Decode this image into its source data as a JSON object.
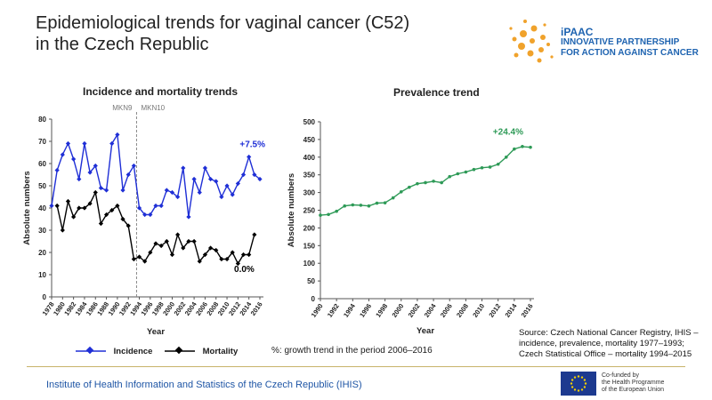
{
  "slide": {
    "title_line1": "Epidemiological trends for vaginal cancer (C52)",
    "title_line2": "in the Czech Republic",
    "logo": {
      "name": "iPAAC",
      "line1": "INNOVATIVE PARTNERSHIP",
      "line2": "FOR ACTION AGAINST CANCER"
    },
    "legend": {
      "incidence_label": "Incidence",
      "mortality_label": "Mortality",
      "note": "%: growth trend in the period 2006–2016"
    },
    "source": {
      "line1": "Source: Czech National Cancer Registry, IHIS –",
      "line2": "incidence, prevalence, mortality 1977–1993;",
      "line3": "Czech Statistical Office – mortality 1994–2015"
    },
    "footer": "Institute of Health Information and Statistics of the Czech Republic (IHIS)",
    "eu": {
      "line1": "Co-funded by",
      "line2": "the Health Programme",
      "line3": "of the European Union"
    }
  },
  "chart_data": [
    {
      "type": "line",
      "title": "Incidence and mortality trends",
      "xlabel": "Year",
      "ylabel": "Absolute numbers",
      "ylim": [
        0,
        80
      ],
      "yticks": [
        0,
        10,
        20,
        30,
        40,
        50,
        60,
        70,
        80
      ],
      "xticks": [
        1978,
        1980,
        1982,
        1984,
        1986,
        1988,
        1990,
        1992,
        1994,
        1996,
        1998,
        2000,
        2002,
        2004,
        2006,
        2008,
        2010,
        2012,
        2014,
        2016
      ],
      "x": [
        1978,
        1979,
        1980,
        1981,
        1982,
        1983,
        1984,
        1985,
        1986,
        1987,
        1988,
        1989,
        1990,
        1991,
        1992,
        1993,
        1994,
        1995,
        1996,
        1997,
        1998,
        1999,
        2000,
        2001,
        2002,
        2003,
        2004,
        2005,
        2006,
        2007,
        2008,
        2009,
        2010,
        2011,
        2012,
        2013,
        2014,
        2015,
        2016
      ],
      "series": [
        {
          "name": "Incidence",
          "color": "#1f2fd6",
          "values": [
            41,
            57,
            64,
            69,
            62,
            53,
            69,
            56,
            59,
            49,
            48,
            69,
            73,
            48,
            55,
            59,
            40,
            37,
            37,
            41,
            41,
            48,
            47,
            45,
            58,
            36,
            53,
            47,
            58,
            53,
            52,
            45,
            50,
            46,
            51,
            55,
            63,
            55,
            53
          ],
          "annotation": "+7.5%"
        },
        {
          "name": "Mortality",
          "color": "#000000",
          "values": [
            null,
            41,
            30,
            43,
            36,
            40,
            40,
            42,
            47,
            33,
            37,
            39,
            41,
            35,
            32,
            17,
            18,
            16,
            20,
            24,
            23,
            25,
            19,
            28,
            22,
            25,
            25,
            16,
            19,
            22,
            21,
            17,
            17,
            20,
            15,
            19,
            19,
            28,
            null
          ],
          "annotation": "0.0%"
        }
      ],
      "divider": {
        "x": 1993.5,
        "left_label": "MKN9",
        "right_label": "MKN10"
      },
      "grid": false
    },
    {
      "type": "line",
      "title": "Prevalence trend",
      "xlabel": "Year",
      "ylabel": "Absolute numbers",
      "ylim": [
        0,
        500
      ],
      "yticks": [
        0,
        50,
        100,
        150,
        200,
        250,
        300,
        350,
        400,
        450,
        500
      ],
      "xticks": [
        1990,
        1992,
        1994,
        1996,
        1998,
        2000,
        2002,
        2004,
        2006,
        2008,
        2010,
        2012,
        2014,
        2016
      ],
      "x": [
        1990,
        1991,
        1992,
        1993,
        1994,
        1995,
        1996,
        1997,
        1998,
        1999,
        2000,
        2001,
        2002,
        2003,
        2004,
        2005,
        2006,
        2007,
        2008,
        2009,
        2010,
        2011,
        2012,
        2013,
        2014,
        2015,
        2016
      ],
      "series": [
        {
          "name": "Prevalence",
          "color": "#2e9a57",
          "values": [
            236,
            238,
            247,
            262,
            265,
            264,
            262,
            270,
            271,
            285,
            302,
            315,
            325,
            328,
            332,
            328,
            345,
            353,
            358,
            365,
            370,
            372,
            380,
            400,
            423,
            430,
            428
          ],
          "annotation": "+24.4%"
        }
      ],
      "grid": false
    }
  ]
}
